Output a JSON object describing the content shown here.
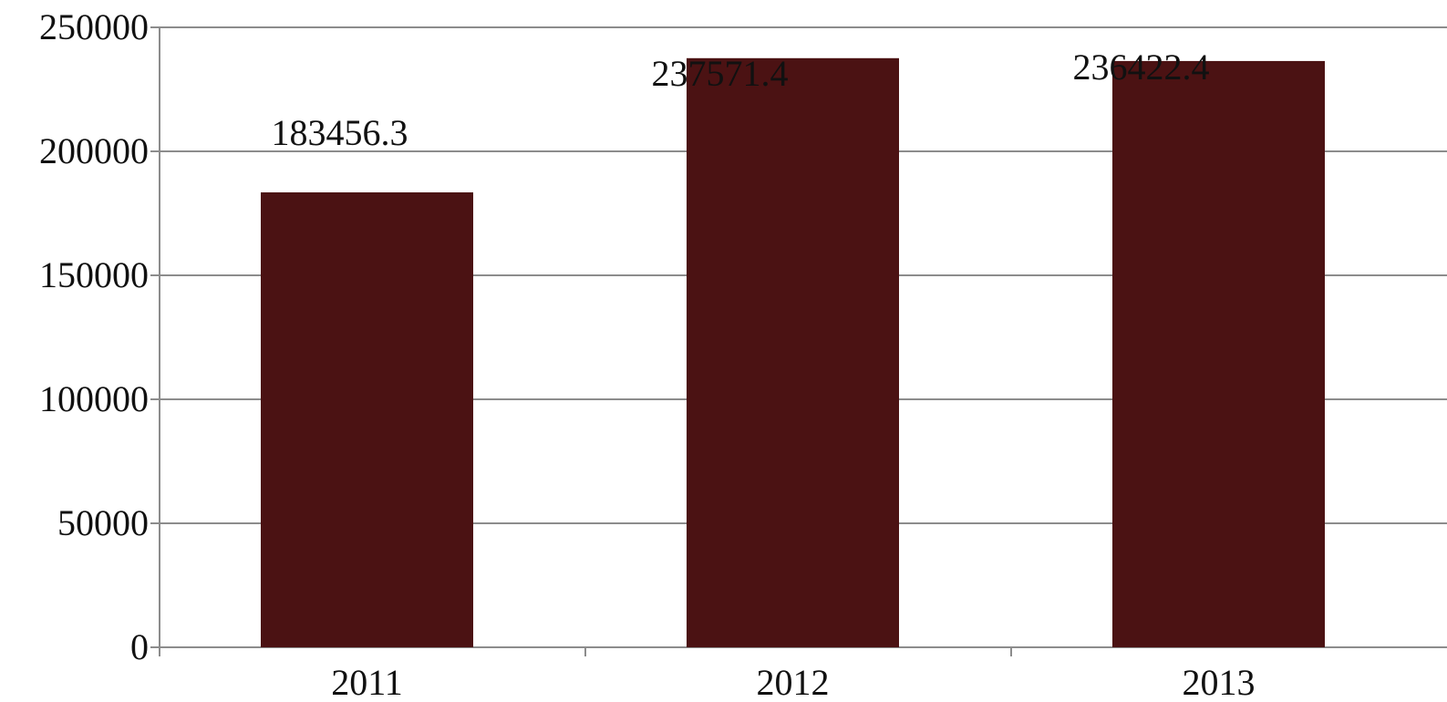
{
  "chart_data": {
    "type": "bar",
    "title": "",
    "xlabel": "",
    "ylabel": "",
    "categories": [
      "2011",
      "2012",
      "2013"
    ],
    "values": [
      183456.3,
      237571.4,
      236422.4
    ],
    "data_labels": [
      "183456.3",
      "237571.4",
      "236422.4"
    ],
    "ylim": [
      0,
      250000
    ],
    "y_ticks": [
      0,
      50000,
      100000,
      150000,
      200000,
      250000
    ],
    "y_tick_labels": [
      "0",
      "50000",
      "100000",
      "150000",
      "200000",
      "250000"
    ],
    "grid": true,
    "legend": "none",
    "bar_color": "#4b1213"
  }
}
